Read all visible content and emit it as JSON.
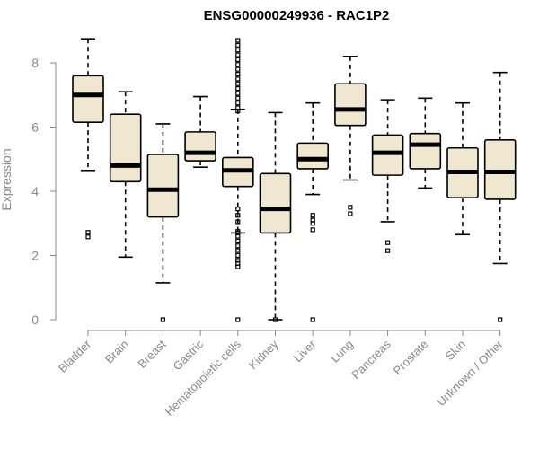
{
  "chart_data": {
    "type": "box",
    "title": "ENSG00000249936 - RAC1P2",
    "xlabel": "",
    "ylabel": "Expression",
    "ylim": [
      0,
      8.75
    ],
    "yticks": [
      0,
      2,
      4,
      6,
      8
    ],
    "categories": [
      "Bladder",
      "Brain",
      "Breast",
      "Gastric",
      "Hematopoietic cells",
      "Kidney",
      "Liver",
      "Lung",
      "Pancreas",
      "Prostate",
      "Skin",
      "Unknown / Other"
    ],
    "box_color": "#efe7cf",
    "boxes": [
      {
        "min": 4.65,
        "q1": 6.15,
        "median": 7.0,
        "q3": 7.6,
        "max": 8.75,
        "outliers": [
          2.58,
          2.72
        ]
      },
      {
        "min": 1.95,
        "q1": 4.3,
        "median": 4.8,
        "q3": 6.4,
        "max": 7.1,
        "outliers": []
      },
      {
        "min": 1.15,
        "q1": 3.2,
        "median": 4.05,
        "q3": 5.15,
        "max": 6.1,
        "outliers": [
          0.0
        ]
      },
      {
        "min": 4.75,
        "q1": 4.95,
        "median": 5.2,
        "q3": 5.85,
        "max": 6.95,
        "outliers": []
      },
      {
        "min": 2.7,
        "q1": 4.15,
        "median": 4.65,
        "q3": 5.05,
        "max": 6.55,
        "outliers": [
          0.0,
          1.65,
          1.75,
          1.85,
          2.0,
          2.15,
          2.3,
          2.45,
          2.6,
          2.7,
          2.75,
          3.05,
          3.25,
          3.45,
          6.5,
          6.6,
          6.75,
          6.9,
          7.05,
          7.2,
          7.35,
          7.5,
          7.65,
          7.8,
          7.95,
          8.1,
          8.25,
          8.4,
          8.55,
          8.7
        ]
      },
      {
        "min": 0.0,
        "q1": 2.7,
        "median": 3.45,
        "q3": 4.55,
        "max": 6.45,
        "outliers": [
          0.0
        ]
      },
      {
        "min": 3.9,
        "q1": 4.7,
        "median": 5.0,
        "q3": 5.5,
        "max": 6.75,
        "outliers": [
          0.0,
          2.8,
          3.0,
          3.1,
          3.25
        ]
      },
      {
        "min": 4.35,
        "q1": 6.05,
        "median": 6.55,
        "q3": 7.35,
        "max": 8.2,
        "outliers": [
          3.3,
          3.5
        ]
      },
      {
        "min": 3.05,
        "q1": 4.5,
        "median": 5.2,
        "q3": 5.75,
        "max": 6.85,
        "outliers": [
          2.15,
          2.4
        ]
      },
      {
        "min": 4.1,
        "q1": 4.7,
        "median": 5.45,
        "q3": 5.8,
        "max": 6.9,
        "outliers": []
      },
      {
        "min": 2.65,
        "q1": 3.8,
        "median": 4.6,
        "q3": 5.35,
        "max": 6.75,
        "outliers": []
      },
      {
        "min": 1.75,
        "q1": 3.75,
        "median": 4.6,
        "q3": 5.6,
        "max": 7.7,
        "outliers": [
          0.0
        ]
      }
    ]
  }
}
